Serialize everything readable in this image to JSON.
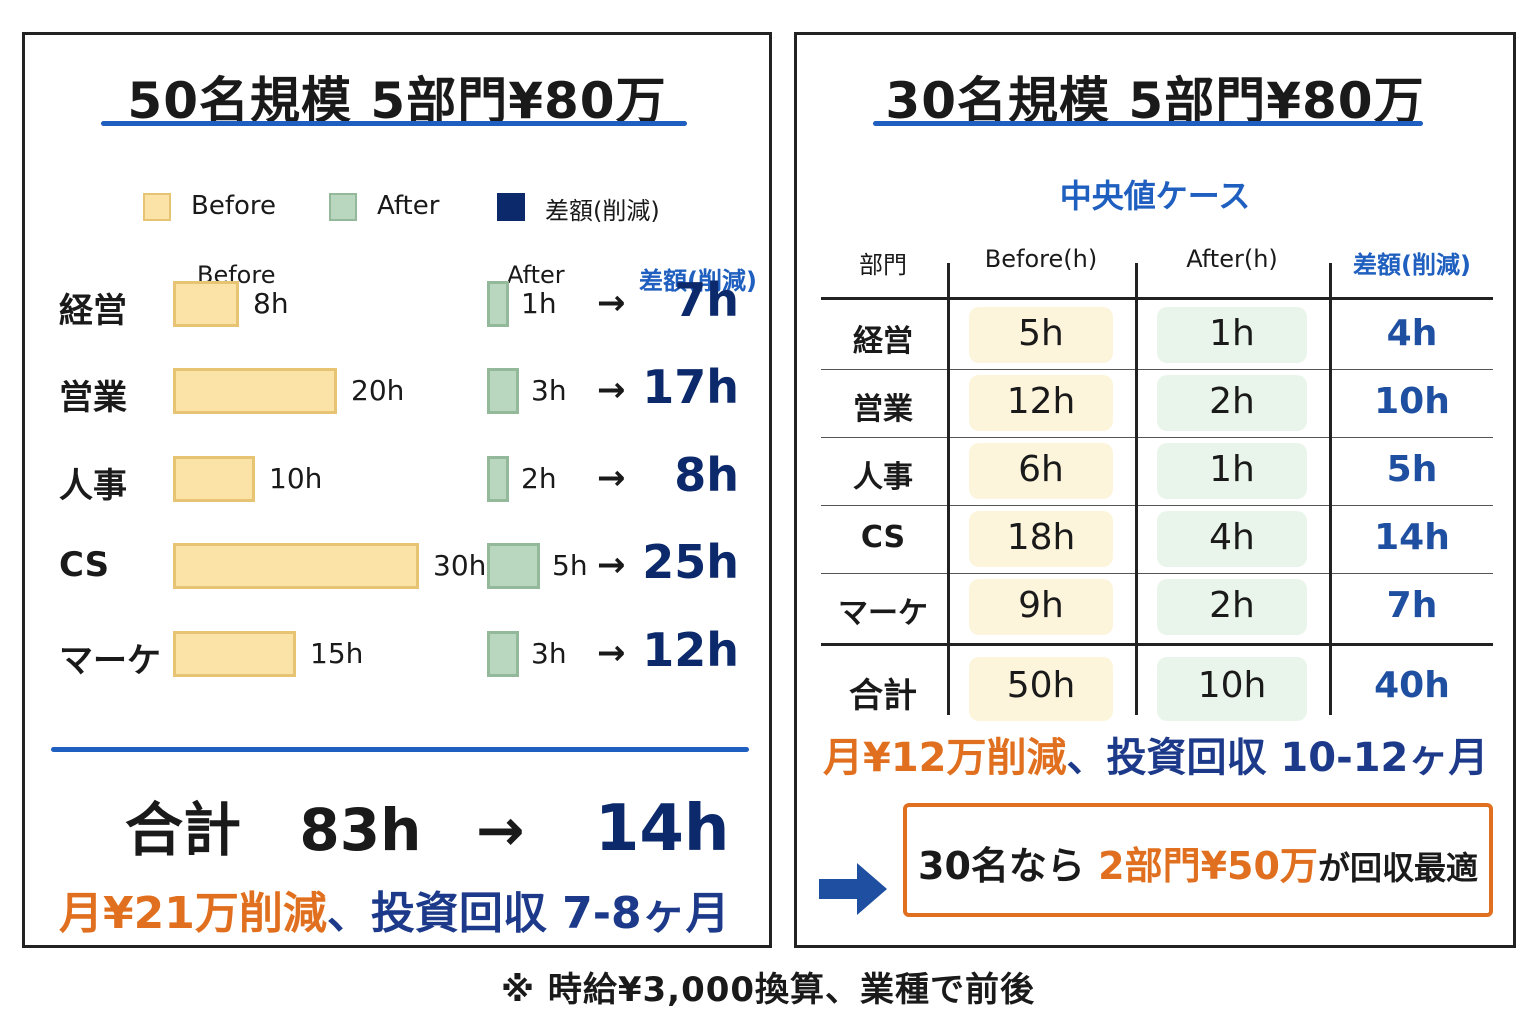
{
  "chart_data": [
    {
      "type": "bar",
      "title": "50名規模 5部門¥80万",
      "legend": [
        {
          "name": "Before",
          "color": "#fbe3a7"
        },
        {
          "name": "After",
          "color": "#b9d7be"
        },
        {
          "name": "差額(削減)",
          "color": "#0c2a6b"
        }
      ],
      "column_headers": {
        "before": "Before",
        "after": "After",
        "diff": "差額(削減)"
      },
      "categories": [
        "経営",
        "営業",
        "人事",
        "CS",
        "マーケ"
      ],
      "series": [
        {
          "name": "Before",
          "values": [
            8,
            20,
            10,
            30,
            15
          ],
          "labels": [
            "8h",
            "20h",
            "10h",
            "30h",
            "15h"
          ]
        },
        {
          "name": "After",
          "values": [
            1,
            3,
            2,
            5,
            3
          ],
          "labels": [
            "1h",
            "3h",
            "2h",
            "5h",
            "3h"
          ]
        },
        {
          "name": "差額(削減)",
          "values": [
            7,
            17,
            8,
            25,
            12
          ],
          "labels": [
            "7h",
            "17h",
            "8h",
            "25h",
            "12h"
          ]
        }
      ],
      "arrow": "→",
      "total": {
        "label": "合計",
        "before": "83h",
        "arrow": "→",
        "after": "14h"
      },
      "summary": {
        "savings": "月¥21万削減",
        "separator": "、",
        "payback": "投資回収 7-8ヶ月"
      }
    },
    {
      "type": "table",
      "title": "30名規模 5部門¥80万",
      "subtitle": "中央値ケース",
      "headers": [
        "部門",
        "Before(h)",
        "After(h)",
        "差額(削減)"
      ],
      "rows": [
        [
          "経営",
          "5h",
          "1h",
          "4h"
        ],
        [
          "営業",
          "12h",
          "2h",
          "10h"
        ],
        [
          "人事",
          "6h",
          "1h",
          "5h"
        ],
        [
          "CS",
          "18h",
          "4h",
          "14h"
        ],
        [
          "マーケ",
          "9h",
          "2h",
          "7h"
        ]
      ],
      "total_row": [
        "合計",
        "50h",
        "10h",
        "40h"
      ],
      "summary": {
        "savings": "月¥12万削減",
        "separator": "、",
        "payback": "投資回収 10-12ヶ月"
      },
      "recommendation": {
        "prefix": "30名なら",
        "highlight": "2部門¥50万",
        "suffix": "が回収最適"
      }
    }
  ],
  "footnote": "※ 時給¥3,000換算、業種で前後",
  "colors": {
    "before_fill": "#fbe3a7",
    "after_fill": "#b9d7be",
    "diff_navy": "#0c2a6b",
    "accent_blue": "#1f5fbf",
    "orange": "#e0701f"
  }
}
